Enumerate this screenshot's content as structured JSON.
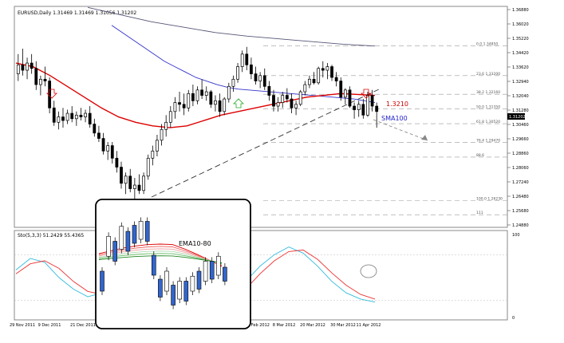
{
  "chart_data": {
    "type": "candlestick",
    "symbol_line": "EURUSD,Daily  1.31469 1.31469 1.31056 1.31202",
    "price_axis_ticks": [
      "1.36880",
      "1.36020",
      "1.35220",
      "1.34420",
      "1.33620",
      "1.32940",
      "1.32040",
      "1.31280",
      "1.30460",
      "1.29660",
      "1.28860",
      "1.28060",
      "1.27240",
      "1.26480",
      "1.25680",
      "1.24880"
    ],
    "current_price_label": "1.31202",
    "fib_levels": [
      {
        "label": "0.0  1.34850",
        "price": 1.3485
      },
      {
        "label": "23.6  1.33200",
        "price": 1.332
      },
      {
        "label": "38.2  1.32160",
        "price": 1.3216
      },
      {
        "label": "50.0  1.31350",
        "price": 1.3135
      },
      {
        "label": "61.8  1.30520",
        "price": 1.3052
      },
      {
        "label": "76.4  1.29470",
        "price": 1.2947
      },
      {
        "label": "88.6",
        "price": 1.2866
      },
      {
        "label": "100.0  1.26230",
        "price": 1.2623
      },
      {
        "label": "111",
        "price": 1.2545
      }
    ],
    "annotations": {
      "resistance_label": "1.3210",
      "sma_label": "SMA100",
      "inset_label": "EMA10-80"
    },
    "candles_ohlc": [
      [
        1.333,
        1.344,
        1.329,
        1.338
      ],
      [
        1.338,
        1.347,
        1.332,
        1.335
      ],
      [
        1.335,
        1.342,
        1.33,
        1.339
      ],
      [
        1.339,
        1.344,
        1.333,
        1.336
      ],
      [
        1.336,
        1.34,
        1.324,
        1.327
      ],
      [
        1.327,
        1.332,
        1.321,
        1.33
      ],
      [
        1.33,
        1.337,
        1.326,
        1.329
      ],
      [
        1.329,
        1.331,
        1.311,
        1.314
      ],
      [
        1.314,
        1.318,
        1.304,
        1.306
      ],
      [
        1.306,
        1.312,
        1.302,
        1.309
      ],
      [
        1.309,
        1.314,
        1.303,
        1.307
      ],
      [
        1.307,
        1.313,
        1.305,
        1.311
      ],
      [
        1.311,
        1.315,
        1.306,
        1.308
      ],
      [
        1.308,
        1.312,
        1.304,
        1.31
      ],
      [
        1.31,
        1.314,
        1.307,
        1.309
      ],
      [
        1.309,
        1.313,
        1.306,
        1.311
      ],
      [
        1.311,
        1.315,
        1.303,
        1.305
      ],
      [
        1.305,
        1.308,
        1.298,
        1.3
      ],
      [
        1.3,
        1.304,
        1.295,
        1.297
      ],
      [
        1.297,
        1.3,
        1.288,
        1.29
      ],
      [
        1.29,
        1.295,
        1.285,
        1.293
      ],
      [
        1.293,
        1.295,
        1.283,
        1.286
      ],
      [
        1.286,
        1.29,
        1.278,
        1.281
      ],
      [
        1.281,
        1.284,
        1.269,
        1.272
      ],
      [
        1.272,
        1.278,
        1.266,
        1.276
      ],
      [
        1.276,
        1.28,
        1.267,
        1.269
      ],
      [
        1.269,
        1.275,
        1.263,
        1.271
      ],
      [
        1.271,
        1.277,
        1.266,
        1.268
      ],
      [
        1.268,
        1.278,
        1.266,
        1.276
      ],
      [
        1.276,
        1.288,
        1.274,
        1.286
      ],
      [
        1.286,
        1.293,
        1.282,
        1.29
      ],
      [
        1.29,
        1.299,
        1.287,
        1.296
      ],
      [
        1.296,
        1.305,
        1.293,
        1.302
      ],
      [
        1.302,
        1.31,
        1.298,
        1.306
      ],
      [
        1.306,
        1.315,
        1.303,
        1.312
      ],
      [
        1.312,
        1.32,
        1.308,
        1.317
      ],
      [
        1.317,
        1.323,
        1.312,
        1.316
      ],
      [
        1.316,
        1.322,
        1.31,
        1.314
      ],
      [
        1.314,
        1.324,
        1.312,
        1.322
      ],
      [
        1.322,
        1.327,
        1.315,
        1.318
      ],
      [
        1.318,
        1.326,
        1.316,
        1.324
      ],
      [
        1.324,
        1.33,
        1.319,
        1.321
      ],
      [
        1.321,
        1.326,
        1.318,
        1.323
      ],
      [
        1.323,
        1.324,
        1.314,
        1.316
      ],
      [
        1.316,
        1.321,
        1.312,
        1.318
      ],
      [
        1.318,
        1.322,
        1.309,
        1.312
      ],
      [
        1.312,
        1.32,
        1.31,
        1.319
      ],
      [
        1.319,
        1.328,
        1.317,
        1.326
      ],
      [
        1.326,
        1.332,
        1.323,
        1.33
      ],
      [
        1.33,
        1.339,
        1.328,
        1.337
      ],
      [
        1.337,
        1.346,
        1.334,
        1.344
      ],
      [
        1.344,
        1.348,
        1.335,
        1.338
      ],
      [
        1.338,
        1.342,
        1.33,
        1.333
      ],
      [
        1.333,
        1.337,
        1.327,
        1.329
      ],
      [
        1.329,
        1.334,
        1.325,
        1.332
      ],
      [
        1.332,
        1.336,
        1.324,
        1.326
      ],
      [
        1.326,
        1.329,
        1.318,
        1.321
      ],
      [
        1.321,
        1.324,
        1.312,
        1.315
      ],
      [
        1.315,
        1.32,
        1.312,
        1.317
      ],
      [
        1.317,
        1.323,
        1.314,
        1.321
      ],
      [
        1.321,
        1.325,
        1.317,
        1.319
      ],
      [
        1.319,
        1.322,
        1.311,
        1.314
      ],
      [
        1.314,
        1.318,
        1.31,
        1.316
      ],
      [
        1.316,
        1.324,
        1.315,
        1.323
      ],
      [
        1.323,
        1.329,
        1.321,
        1.327
      ],
      [
        1.327,
        1.332,
        1.325,
        1.33
      ],
      [
        1.33,
        1.334,
        1.327,
        1.328
      ],
      [
        1.328,
        1.337,
        1.327,
        1.336
      ],
      [
        1.336,
        1.34,
        1.331,
        1.335
      ],
      [
        1.335,
        1.339,
        1.33,
        1.337
      ],
      [
        1.337,
        1.338,
        1.329,
        1.331
      ],
      [
        1.331,
        1.334,
        1.326,
        1.329
      ],
      [
        1.329,
        1.331,
        1.318,
        1.32
      ],
      [
        1.32,
        1.325,
        1.316,
        1.324
      ],
      [
        1.324,
        1.326,
        1.314,
        1.315
      ],
      [
        1.315,
        1.317,
        1.308,
        1.313
      ],
      [
        1.313,
        1.318,
        1.309,
        1.316
      ],
      [
        1.316,
        1.319,
        1.308,
        1.31
      ],
      [
        1.31,
        1.323,
        1.309,
        1.321
      ],
      [
        1.321,
        1.324,
        1.312,
        1.315
      ],
      [
        1.315,
        1.317,
        1.303,
        1.312
      ]
    ],
    "sma100": [
      1.36,
      1.356,
      1.352,
      1.348,
      1.344,
      1.34,
      1.337,
      1.334,
      1.331,
      1.329,
      1.327,
      1.3255,
      1.3245,
      1.324,
      1.3235,
      1.323,
      1.3225,
      1.322,
      1.3215,
      1.321,
      1.3205,
      1.32,
      1.3195,
      1.319,
      1.318,
      1.317
    ],
    "ema_red": [
      1.339,
      1.337,
      1.332,
      1.326,
      1.32,
      1.314,
      1.309,
      1.306,
      1.304,
      1.303,
      1.304,
      1.307,
      1.31,
      1.312,
      1.314,
      1.316,
      1.318,
      1.32,
      1.321,
      1.322,
      1.3215,
      1.321
    ],
    "sma_long": [
      1.37,
      1.366,
      1.362,
      1.359,
      1.356,
      1.354,
      1.3525,
      1.351,
      1.3495,
      1.3485
    ],
    "x_axis_labels": [
      "29 Nov 2011",
      "9 Dec 2011",
      "21 Dec 2011",
      "2 Feb 2012",
      "8 Mar 2012",
      "20 Mar 2012",
      "30 Mar 2012",
      "11 Apr 2012"
    ],
    "stochastic": {
      "label": "Sto(5,3,3) 51.2429 55.4365",
      "y_ticks": [
        "100",
        "0"
      ],
      "main": [
        60,
        75,
        70,
        50,
        35,
        25,
        30,
        45,
        65,
        80,
        72,
        55,
        35,
        20,
        15,
        25,
        45,
        65,
        80,
        90,
        82,
        65,
        45,
        30,
        22,
        18
      ],
      "signal": [
        55,
        68,
        72,
        62,
        45,
        32,
        28,
        35,
        55,
        70,
        76,
        66,
        48,
        30,
        20,
        20,
        35,
        55,
        72,
        84,
        86,
        74,
        56,
        40,
        28,
        22
      ]
    }
  }
}
